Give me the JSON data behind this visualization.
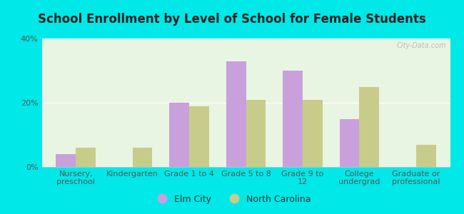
{
  "title": "School Enrollment by Level of School for Female Students",
  "categories": [
    "Nursery,\npreschool",
    "Kindergarten",
    "Grade 1 to 4",
    "Grade 5 to 8",
    "Grade 9 to\n12",
    "College\nundergrad",
    "Graduate or\nprofessional"
  ],
  "elm_city": [
    4.0,
    0.0,
    20.0,
    33.0,
    30.0,
    15.0,
    0.0
  ],
  "north_carolina": [
    6.0,
    6.0,
    19.0,
    21.0,
    21.0,
    25.0,
    7.0
  ],
  "elm_city_color": "#c9a0dc",
  "north_carolina_color": "#c8cc8a",
  "background_color": "#00e8e8",
  "plot_bg_color": "#e8f5e2",
  "ylim": [
    0,
    40
  ],
  "yticks": [
    0,
    20,
    40
  ],
  "ytick_labels": [
    "0%",
    "20%",
    "40%"
  ],
  "bar_width": 0.35,
  "legend_elm_city": "Elm City",
  "legend_nc": "North Carolina",
  "title_fontsize": 12,
  "tick_fontsize": 8,
  "legend_fontsize": 9,
  "watermark": "City-Data.com"
}
